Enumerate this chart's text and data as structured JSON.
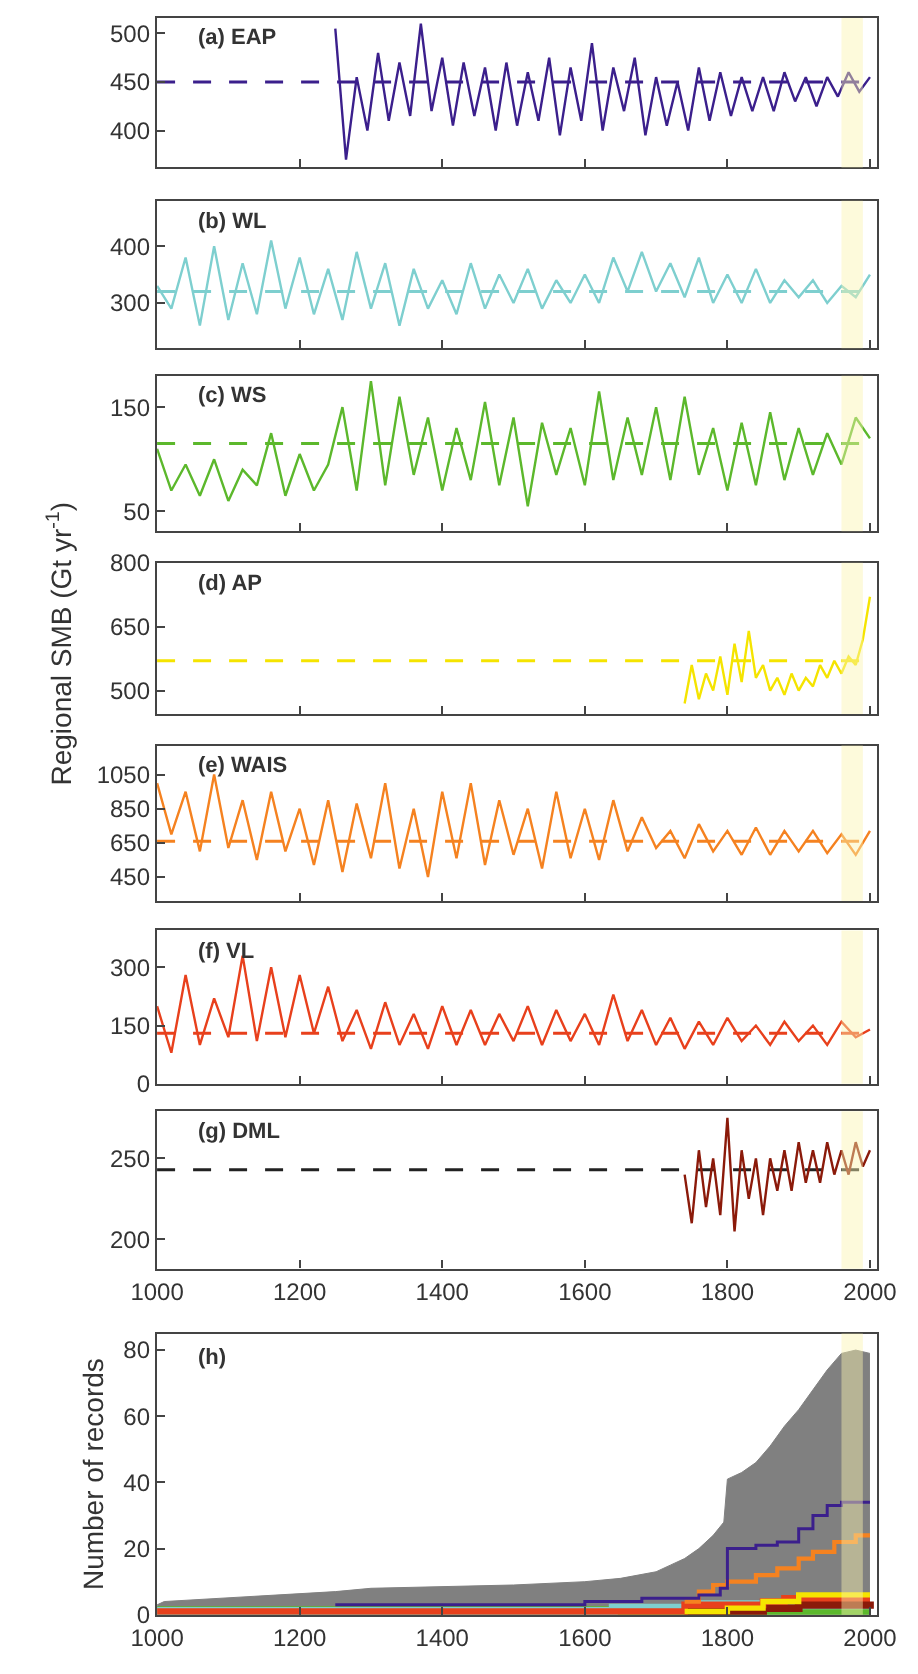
{
  "chart_data": [
    {
      "type": "line",
      "title": "(a) EAP",
      "xlim": [
        1000,
        2010
      ],
      "xticks": [
        1000,
        1200,
        1400,
        1600,
        1800,
        2000
      ],
      "ylim": [
        362,
        516
      ],
      "yticks": [
        400,
        450,
        500
      ],
      "tick_labels": "y",
      "series": [
        {
          "color": "#3b1f8c",
          "x": [
            1250,
            1265,
            1280,
            1295,
            1310,
            1325,
            1340,
            1355,
            1370,
            1385,
            1400,
            1415,
            1430,
            1445,
            1460,
            1475,
            1490,
            1505,
            1520,
            1535,
            1550,
            1565,
            1580,
            1595,
            1610,
            1625,
            1640,
            1655,
            1670,
            1685,
            1700,
            1715,
            1730,
            1745,
            1760,
            1775,
            1790,
            1805,
            1820,
            1835,
            1850,
            1865,
            1880,
            1895,
            1910,
            1925,
            1940,
            1955,
            1970,
            1985,
            2000
          ],
          "values": [
            505,
            370,
            455,
            400,
            480,
            410,
            470,
            415,
            510,
            420,
            475,
            405,
            470,
            415,
            465,
            400,
            470,
            405,
            460,
            410,
            475,
            395,
            465,
            410,
            490,
            400,
            465,
            420,
            475,
            395,
            455,
            405,
            450,
            400,
            465,
            410,
            460,
            415,
            455,
            420,
            455,
            420,
            460,
            430,
            455,
            425,
            455,
            435,
            460,
            440,
            455
          ]
        }
      ],
      "ref_lines": [
        {
          "axis": "y",
          "value": 450,
          "color": "#3b1f8c",
          "line_style": "dashed"
        }
      ],
      "bands": [
        {
          "axis": "x",
          "from": 1960,
          "to": 1990,
          "color": "#fbf3b0"
        }
      ]
    },
    {
      "type": "line",
      "title": "(b) WL",
      "xlim": [
        1000,
        2010
      ],
      "xticks": [
        1000,
        1200,
        1400,
        1600,
        1800,
        2000
      ],
      "ylim": [
        220,
        480
      ],
      "yticks": [
        300,
        400
      ],
      "tick_labels": "y",
      "series": [
        {
          "color": "#7ecfcf",
          "x": [
            1000,
            1020,
            1040,
            1060,
            1080,
            1100,
            1120,
            1140,
            1160,
            1180,
            1200,
            1220,
            1240,
            1260,
            1280,
            1300,
            1320,
            1340,
            1360,
            1380,
            1400,
            1420,
            1440,
            1460,
            1480,
            1500,
            1520,
            1540,
            1560,
            1580,
            1600,
            1620,
            1640,
            1660,
            1680,
            1700,
            1720,
            1740,
            1760,
            1780,
            1800,
            1820,
            1840,
            1860,
            1880,
            1900,
            1920,
            1940,
            1960,
            1980,
            2000
          ],
          "values": [
            330,
            290,
            380,
            260,
            400,
            270,
            370,
            280,
            410,
            290,
            380,
            280,
            360,
            270,
            390,
            290,
            370,
            260,
            360,
            290,
            340,
            280,
            370,
            290,
            350,
            300,
            360,
            290,
            340,
            300,
            350,
            300,
            380,
            320,
            390,
            320,
            370,
            310,
            380,
            300,
            350,
            300,
            360,
            300,
            340,
            310,
            340,
            300,
            330,
            310,
            350
          ]
        }
      ],
      "ref_lines": [
        {
          "axis": "y",
          "value": 320,
          "color": "#7ecfcf",
          "line_style": "dashed"
        }
      ],
      "bands": [
        {
          "axis": "x",
          "from": 1960,
          "to": 1990,
          "color": "#fbf3b0"
        }
      ]
    },
    {
      "type": "line",
      "title": "(c) WS",
      "xlim": [
        1000,
        2010
      ],
      "xticks": [
        1000,
        1200,
        1400,
        1600,
        1800,
        2000
      ],
      "ylim": [
        31,
        180
      ],
      "yticks": [
        50,
        150
      ],
      "tick_labels": "y",
      "series": [
        {
          "color": "#5cb82c",
          "x": [
            1000,
            1020,
            1040,
            1060,
            1080,
            1100,
            1120,
            1140,
            1160,
            1180,
            1200,
            1220,
            1240,
            1260,
            1280,
            1300,
            1320,
            1340,
            1360,
            1380,
            1400,
            1420,
            1440,
            1460,
            1480,
            1500,
            1520,
            1540,
            1560,
            1580,
            1600,
            1620,
            1640,
            1660,
            1680,
            1700,
            1720,
            1740,
            1760,
            1780,
            1800,
            1820,
            1840,
            1860,
            1880,
            1900,
            1920,
            1940,
            1960,
            1980,
            2000
          ],
          "values": [
            110,
            70,
            95,
            65,
            100,
            60,
            90,
            75,
            125,
            65,
            105,
            70,
            95,
            150,
            70,
            175,
            75,
            160,
            85,
            140,
            70,
            130,
            80,
            155,
            75,
            140,
            55,
            135,
            85,
            130,
            75,
            165,
            80,
            140,
            85,
            150,
            80,
            160,
            85,
            130,
            70,
            135,
            75,
            145,
            80,
            130,
            85,
            125,
            95,
            140,
            120
          ]
        }
      ],
      "ref_lines": [
        {
          "axis": "y",
          "value": 115,
          "color": "#5cb82c",
          "line_style": "dashed"
        }
      ],
      "bands": [
        {
          "axis": "x",
          "from": 1960,
          "to": 1990,
          "color": "#fbf3b0"
        }
      ]
    },
    {
      "type": "line",
      "title": "(d) AP",
      "ylabel": "Regional SMB (Gt yr$^{-1}$)",
      "xlim": [
        1000,
        2010
      ],
      "xticks": [
        1000,
        1200,
        1400,
        1600,
        1800,
        2000
      ],
      "ylim": [
        445,
        800
      ],
      "yticks": [
        500,
        650,
        800
      ],
      "tick_labels": "y",
      "series": [
        {
          "color": "#f5e400",
          "x": [
            1740,
            1750,
            1760,
            1770,
            1780,
            1790,
            1800,
            1810,
            1820,
            1830,
            1840,
            1850,
            1860,
            1870,
            1880,
            1890,
            1900,
            1910,
            1920,
            1930,
            1940,
            1950,
            1960,
            1970,
            1980,
            1990,
            2000
          ],
          "values": [
            470,
            560,
            480,
            540,
            500,
            580,
            490,
            610,
            520,
            640,
            530,
            560,
            500,
            530,
            490,
            540,
            500,
            530,
            510,
            560,
            530,
            570,
            540,
            580,
            560,
            620,
            720
          ]
        }
      ],
      "ref_lines": [
        {
          "axis": "y",
          "value": 570,
          "color": "#f5e400",
          "line_style": "dashed"
        }
      ],
      "bands": [
        {
          "axis": "x",
          "from": 1960,
          "to": 1990,
          "color": "#fbf3b0"
        }
      ]
    },
    {
      "type": "line",
      "title": "(e) WAIS",
      "xlim": [
        1000,
        2010
      ],
      "xticks": [
        1000,
        1200,
        1400,
        1600,
        1800,
        2000
      ],
      "ylim": [
        310,
        1220
      ],
      "yticks": [
        450,
        650,
        850,
        1050
      ],
      "tick_labels": "y",
      "series": [
        {
          "color": "#f58220",
          "x": [
            1000,
            1020,
            1040,
            1060,
            1080,
            1100,
            1120,
            1140,
            1160,
            1180,
            1200,
            1220,
            1240,
            1260,
            1280,
            1300,
            1320,
            1340,
            1360,
            1380,
            1400,
            1420,
            1440,
            1460,
            1480,
            1500,
            1520,
            1540,
            1560,
            1580,
            1600,
            1620,
            1640,
            1660,
            1680,
            1700,
            1720,
            1740,
            1760,
            1780,
            1800,
            1820,
            1840,
            1860,
            1880,
            1900,
            1920,
            1940,
            1960,
            1980,
            2000
          ],
          "values": [
            1000,
            700,
            950,
            600,
            1050,
            620,
            900,
            550,
            950,
            600,
            850,
            520,
            900,
            480,
            880,
            560,
            1000,
            500,
            850,
            450,
            950,
            560,
            1000,
            520,
            900,
            580,
            850,
            500,
            950,
            560,
            850,
            550,
            900,
            600,
            800,
            620,
            720,
            560,
            760,
            600,
            720,
            580,
            740,
            580,
            720,
            600,
            720,
            590,
            700,
            580,
            720
          ]
        }
      ],
      "ref_lines": [
        {
          "axis": "y",
          "value": 660,
          "color": "#f58220",
          "line_style": "dashed"
        }
      ],
      "bands": [
        {
          "axis": "x",
          "from": 1960,
          "to": 1990,
          "color": "#fbf3b0"
        }
      ]
    },
    {
      "type": "line",
      "title": "(f) VL",
      "xlim": [
        1000,
        2010
      ],
      "xticks": [
        1000,
        1200,
        1400,
        1600,
        1800,
        2000
      ],
      "ylim": [
        0,
        395
      ],
      "yticks": [
        0,
        150,
        300
      ],
      "tick_labels": "y",
      "series": [
        {
          "color": "#e8401c",
          "x": [
            1000,
            1020,
            1040,
            1060,
            1080,
            1100,
            1120,
            1140,
            1160,
            1180,
            1200,
            1220,
            1240,
            1260,
            1280,
            1300,
            1320,
            1340,
            1360,
            1380,
            1400,
            1420,
            1440,
            1460,
            1480,
            1500,
            1520,
            1540,
            1560,
            1580,
            1600,
            1620,
            1640,
            1660,
            1680,
            1700,
            1720,
            1740,
            1760,
            1780,
            1800,
            1820,
            1840,
            1860,
            1880,
            1900,
            1920,
            1940,
            1960,
            1980,
            2000
          ],
          "values": [
            200,
            80,
            280,
            100,
            220,
            120,
            330,
            110,
            300,
            120,
            280,
            130,
            250,
            110,
            190,
            90,
            210,
            100,
            180,
            90,
            200,
            100,
            190,
            100,
            180,
            110,
            200,
            100,
            190,
            110,
            180,
            100,
            230,
            110,
            190,
            100,
            170,
            90,
            160,
            100,
            170,
            110,
            150,
            100,
            160,
            110,
            150,
            100,
            160,
            120,
            140
          ]
        }
      ],
      "ref_lines": [
        {
          "axis": "y",
          "value": 130,
          "color": "#e8401c",
          "line_style": "dashed"
        }
      ],
      "bands": [
        {
          "axis": "x",
          "from": 1960,
          "to": 1990,
          "color": "#fbf3b0"
        }
      ]
    },
    {
      "type": "line",
      "title": "(g) DML",
      "xlim": [
        1000,
        2010
      ],
      "xticks": [
        1000,
        1200,
        1400,
        1600,
        1800,
        2000
      ],
      "ylim": [
        182,
        279
      ],
      "yticks": [
        200,
        250
      ],
      "series": [
        {
          "color": "#8b1a0a",
          "x": [
            1740,
            1750,
            1760,
            1770,
            1780,
            1790,
            1800,
            1810,
            1820,
            1830,
            1840,
            1850,
            1860,
            1870,
            1880,
            1890,
            1900,
            1910,
            1920,
            1930,
            1940,
            1950,
            1960,
            1970,
            1980,
            1990,
            2000
          ],
          "values": [
            240,
            210,
            255,
            220,
            250,
            215,
            275,
            205,
            255,
            225,
            250,
            215,
            250,
            230,
            255,
            230,
            260,
            235,
            255,
            235,
            260,
            240,
            255,
            240,
            260,
            245,
            255
          ]
        }
      ],
      "ref_lines": [
        {
          "axis": "y",
          "value": 243,
          "color": "#222222",
          "line_style": "dashed"
        }
      ],
      "bands": [
        {
          "axis": "x",
          "from": 1960,
          "to": 1990,
          "color": "#fbf3b0"
        }
      ]
    },
    {
      "type": "step",
      "title": "(h)",
      "ylabel": "Number of records",
      "xlim": [
        1000,
        2010
      ],
      "xticks": [
        1000,
        1200,
        1400,
        1600,
        1800,
        2000
      ],
      "ylim": [
        0,
        85
      ],
      "yticks": [
        0,
        20,
        40,
        60,
        80
      ],
      "series": [
        {
          "type": "area",
          "color": "#808080",
          "x": [
            1000,
            1010,
            1250,
            1300,
            1500,
            1600,
            1650,
            1700,
            1720,
            1740,
            1760,
            1780,
            1795,
            1800,
            1820,
            1840,
            1860,
            1880,
            1900,
            1920,
            1940,
            1960,
            1980,
            2000
          ],
          "values": [
            3,
            4,
            7,
            8,
            9,
            10,
            11,
            13,
            15,
            17,
            20,
            24,
            28,
            41,
            43,
            46,
            51,
            57,
            62,
            68,
            74,
            79,
            80,
            79
          ]
        },
        {
          "color": "#5cb82c",
          "x": [
            1000,
            2000
          ],
          "values": [
            1,
            1
          ]
        },
        {
          "color": "#7ecfcf",
          "x": [
            1000,
            1640,
            1750,
            2000
          ],
          "values": [
            1,
            2,
            3,
            3
          ]
        },
        {
          "color": "#8b1a0a",
          "x": [
            1740,
            1850,
            1900,
            2000
          ],
          "values": [
            1,
            2,
            3,
            4
          ]
        },
        {
          "color": "#e8401c",
          "x": [
            1000,
            1740,
            1850,
            1880,
            2000
          ],
          "values": [
            1,
            3,
            4,
            5,
            5
          ]
        },
        {
          "color": "#f5e400",
          "x": [
            1740,
            1800,
            1850,
            1900,
            2000
          ],
          "values": [
            1,
            2,
            4,
            6,
            6
          ]
        },
        {
          "color": "#f58220",
          "x": [
            1740,
            1760,
            1780,
            1800,
            1840,
            1870,
            1900,
            1920,
            1950,
            1980,
            2000
          ],
          "values": [
            4,
            7,
            9,
            10,
            12,
            14,
            17,
            19,
            22,
            24,
            24
          ]
        },
        {
          "color": "#3b1f8c",
          "x": [
            1250,
            1600,
            1680,
            1760,
            1790,
            1800,
            1840,
            1870,
            1900,
            1920,
            1940,
            1960,
            2000
          ],
          "values": [
            3,
            4,
            5,
            6,
            8,
            20,
            21,
            22,
            26,
            30,
            33,
            34,
            34
          ]
        }
      ],
      "bands": [
        {
          "axis": "x",
          "from": 1960,
          "to": 1990,
          "color": "#fbf3b0"
        }
      ]
    }
  ]
}
